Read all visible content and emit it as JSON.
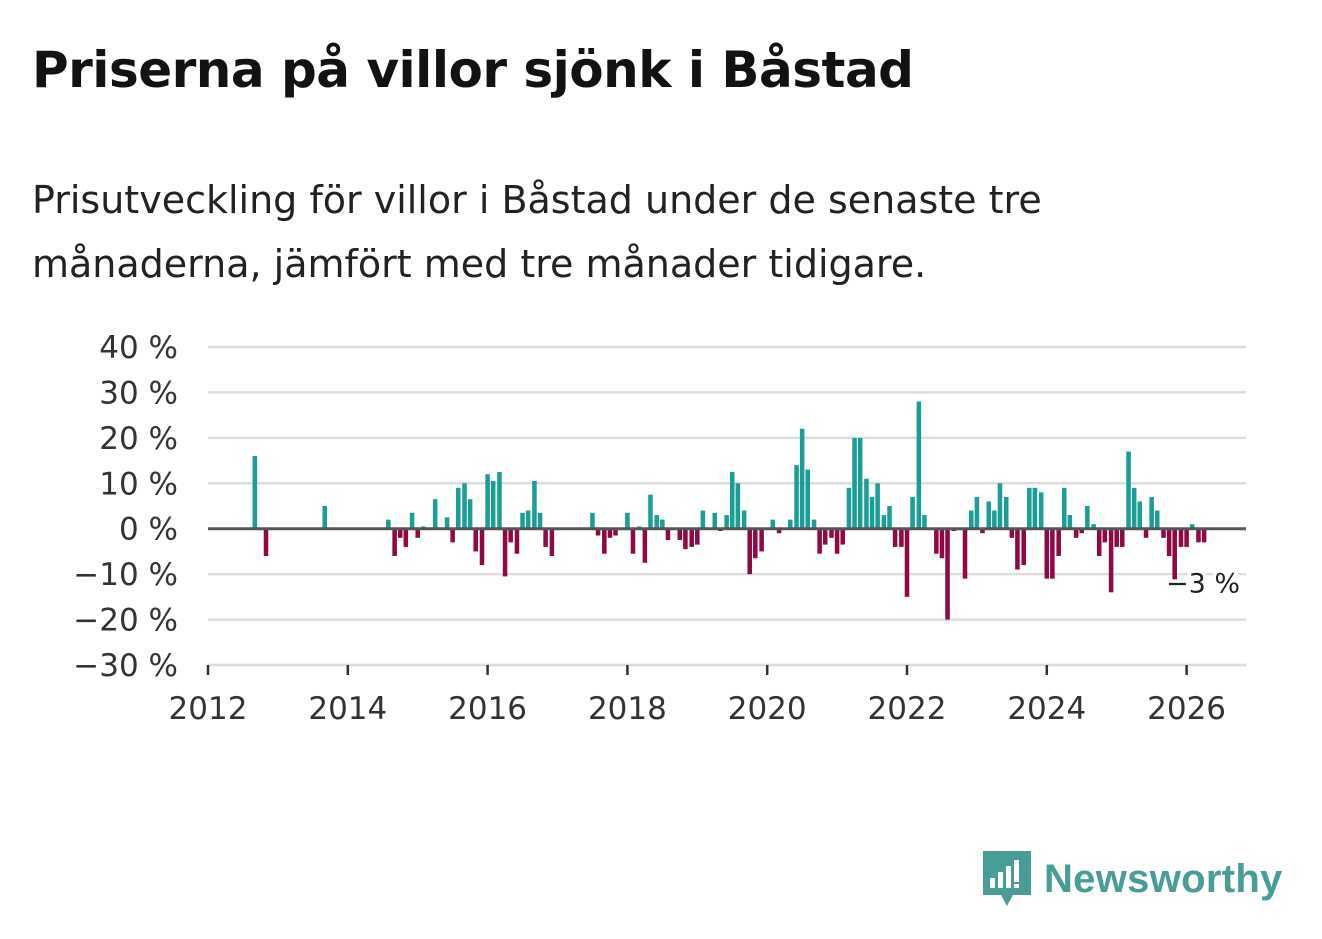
{
  "title": "Priserna på villor sjönk i Båstad",
  "subtitle": "Prisutveckling för villor i Båstad under de senaste tre månaderna, jämfört med tre månader tidigare.",
  "brand": "Newsworthy",
  "colors": {
    "positive": "#1b9e96",
    "negative": "#8f0a44",
    "grid": "#dddddd",
    "zero": "#555555"
  },
  "chart_data": {
    "type": "bar",
    "title": "Priserna på villor sjönk i Båstad",
    "xlabel": "",
    "ylabel": "",
    "ylim": [
      -30,
      40
    ],
    "xlim": [
      2012,
      2026.85
    ],
    "y_ticks": [
      40,
      30,
      20,
      10,
      0,
      -10,
      -20,
      -30
    ],
    "y_tick_labels": [
      "40 %",
      "30 %",
      "20 %",
      "10 %",
      "0 %",
      "−10 %",
      "−20 %",
      "−30 %"
    ],
    "x_ticks": [
      2012,
      2014,
      2016,
      2018,
      2020,
      2022,
      2024,
      2026
    ],
    "x_tick_labels": [
      "2012",
      "2014",
      "2016",
      "2018",
      "2020",
      "2022",
      "2024",
      "2026"
    ],
    "last_value_label": "−3 %",
    "x": [
      2012.67,
      2012.83,
      2013.67,
      2014.58,
      2014.67,
      2014.75,
      2014.83,
      2014.92,
      2015.0,
      2015.08,
      2015.25,
      2015.42,
      2015.5,
      2015.58,
      2015.67,
      2015.75,
      2015.83,
      2015.92,
      2016.0,
      2016.08,
      2016.17,
      2016.25,
      2016.33,
      2016.42,
      2016.5,
      2016.58,
      2016.67,
      2016.75,
      2016.83,
      2016.92,
      2017.5,
      2017.58,
      2017.67,
      2017.75,
      2017.83,
      2018.0,
      2018.08,
      2018.17,
      2018.25,
      2018.33,
      2018.42,
      2018.5,
      2018.58,
      2018.75,
      2018.83,
      2018.92,
      2019.0,
      2019.08,
      2019.25,
      2019.33,
      2019.42,
      2019.5,
      2019.58,
      2019.67,
      2019.75,
      2019.83,
      2019.92,
      2020.08,
      2020.17,
      2020.33,
      2020.42,
      2020.5,
      2020.58,
      2020.67,
      2020.75,
      2020.83,
      2020.92,
      2021.0,
      2021.08,
      2021.17,
      2021.25,
      2021.33,
      2021.42,
      2021.5,
      2021.58,
      2021.67,
      2021.75,
      2021.83,
      2021.92,
      2022.0,
      2022.08,
      2022.17,
      2022.25,
      2022.42,
      2022.5,
      2022.58,
      2022.67,
      2022.83,
      2022.92,
      2023.0,
      2023.08,
      2023.17,
      2023.25,
      2023.33,
      2023.42,
      2023.5,
      2023.58,
      2023.67,
      2023.75,
      2023.83,
      2023.92,
      2024.0,
      2024.08,
      2024.17,
      2024.25,
      2024.33,
      2024.42,
      2024.5,
      2024.58,
      2024.67,
      2024.75,
      2024.83,
      2024.92,
      2025.0,
      2025.08,
      2025.17,
      2025.25,
      2025.33,
      2025.42,
      2025.5,
      2025.58,
      2025.67,
      2025.75,
      2025.83,
      2025.92,
      2026.0,
      2026.08,
      2026.17,
      2026.25
    ],
    "values": [
      16,
      -6,
      5,
      2,
      -6,
      -2,
      -4,
      3.5,
      -2,
      0.5,
      6.5,
      2.5,
      -3,
      9,
      10,
      6.5,
      -5,
      -8,
      12,
      10.5,
      12.5,
      -10.5,
      -3,
      -5.5,
      3.5,
      4,
      10.5,
      3.5,
      -4,
      -6,
      3.5,
      -1.5,
      -5.5,
      -2,
      -1.5,
      3.5,
      -5.5,
      0.5,
      -7.5,
      7.5,
      3,
      2,
      -2.5,
      -2.5,
      -4.5,
      -4,
      -3.5,
      4,
      3.5,
      -0.5,
      3,
      12.5,
      10,
      4,
      -10,
      -6.5,
      -5,
      2,
      -1,
      2,
      14,
      22,
      13,
      2,
      -5.5,
      -3.5,
      -2,
      -5.5,
      -3.5,
      9,
      20,
      20,
      11,
      7,
      10,
      3,
      5,
      -4,
      -4,
      -15,
      7,
      28,
      3,
      -5.5,
      -6.5,
      -20,
      -0.5,
      -11,
      4,
      7,
      -1,
      6,
      4,
      10,
      7,
      -2,
      -9,
      -8,
      9,
      9,
      8,
      -11,
      -11,
      -6,
      9,
      3,
      -2,
      -1,
      5,
      1,
      -6,
      -3,
      -14,
      -4,
      -4,
      17,
      9,
      6,
      -2,
      7,
      4,
      -2,
      -6,
      -12.5,
      -4,
      -4,
      1,
      -3,
      -3
    ]
  }
}
